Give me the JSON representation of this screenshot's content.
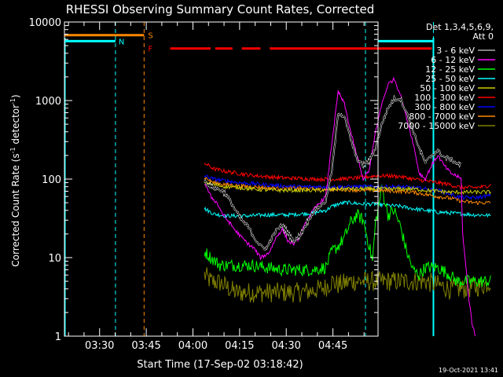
{
  "chart_data": {
    "type": "line",
    "title": "RHESSI Observing Summary Count Rates, Corrected",
    "xlabel": "Start Time (17-Sep-02 03:18:42)",
    "ylabel_main": "Corrected Count Rate (s",
    "ylabel_sup1": "-1",
    "ylabel_mid": " detector",
    "ylabel_sup2": "-1",
    "ylabel_end": ")",
    "yscale": "log",
    "ylim": [
      1,
      10000
    ],
    "xlim": [
      "03:18:42",
      "04:59:30"
    ],
    "x_ticks": [
      "03:30",
      "03:45",
      "04:00",
      "04:15",
      "04:30",
      "04:45"
    ],
    "y_ticks": [
      "1",
      "10",
      "100",
      "1000",
      "10000"
    ],
    "legend_header": [
      "Det 1,3,4,5,6,9,",
      "Att 0"
    ],
    "legend_position": "right",
    "flags": {
      "S": "S",
      "N": "N",
      "F": "F"
    },
    "footer_date": "19-Oct-2021 13:41",
    "series": [
      {
        "name": "3 - 6 keV",
        "color": "#000000",
        "points": [
          [
            45,
            95
          ],
          [
            47,
            80
          ],
          [
            49,
            75
          ],
          [
            51,
            70
          ],
          [
            53,
            55
          ],
          [
            55,
            40
          ],
          [
            57,
            30
          ],
          [
            59,
            25
          ],
          [
            61,
            18
          ],
          [
            63,
            14
          ],
          [
            65,
            13
          ],
          [
            66,
            16
          ],
          [
            68,
            22
          ],
          [
            70,
            26
          ],
          [
            72,
            20
          ],
          [
            74,
            16
          ],
          [
            76,
            20
          ],
          [
            78,
            28
          ],
          [
            80,
            38
          ],
          [
            82,
            45
          ],
          [
            84,
            52
          ],
          [
            86,
            130
          ],
          [
            88,
            700
          ],
          [
            90,
            620
          ],
          [
            92,
            320
          ],
          [
            94,
            180
          ],
          [
            96,
            150
          ],
          [
            98,
            170
          ],
          [
            100,
            250
          ],
          [
            102,
            500
          ],
          [
            104,
            800
          ],
          [
            106,
            1050
          ],
          [
            108,
            1050
          ],
          [
            110,
            700
          ],
          [
            112,
            420
          ],
          [
            114,
            250
          ],
          [
            116,
            160
          ],
          [
            118,
            200
          ],
          [
            120,
            230
          ],
          [
            122,
            190
          ],
          [
            124,
            180
          ],
          [
            126,
            160
          ],
          [
            127.5,
            150
          ]
        ]
      },
      {
        "name": "6 - 12 keV",
        "color": "#ff00ff",
        "points": [
          [
            45,
            90
          ],
          [
            47,
            60
          ],
          [
            49,
            50
          ],
          [
            51,
            35
          ],
          [
            53,
            28
          ],
          [
            55,
            22
          ],
          [
            57,
            18
          ],
          [
            59,
            15
          ],
          [
            61,
            13
          ],
          [
            63,
            10
          ],
          [
            65,
            11
          ],
          [
            66,
            12
          ],
          [
            68,
            18
          ],
          [
            70,
            23
          ],
          [
            72,
            16
          ],
          [
            74,
            15
          ],
          [
            76,
            20
          ],
          [
            78,
            30
          ],
          [
            80,
            40
          ],
          [
            82,
            50
          ],
          [
            84,
            60
          ],
          [
            86,
            300
          ],
          [
            88,
            1300
          ],
          [
            90,
            900
          ],
          [
            92,
            400
          ],
          [
            94,
            200
          ],
          [
            96,
            100
          ],
          [
            98,
            130
          ],
          [
            100,
            400
          ],
          [
            102,
            900
          ],
          [
            104,
            1600
          ],
          [
            106,
            1900
          ],
          [
            108,
            1200
          ],
          [
            110,
            600
          ],
          [
            112,
            300
          ],
          [
            114,
            120
          ],
          [
            116,
            100
          ],
          [
            118,
            150
          ],
          [
            120,
            200
          ],
          [
            122,
            150
          ],
          [
            124,
            120
          ],
          [
            126,
            110
          ],
          [
            127.5,
            100
          ],
          [
            128,
            20
          ],
          [
            129,
            8
          ],
          [
            130,
            3
          ],
          [
            131,
            1.5
          ],
          [
            132,
            1
          ]
        ]
      },
      {
        "name": "12 - 25 keV",
        "color": "#00ff00",
        "points": [
          [
            45,
            12
          ],
          [
            47,
            10
          ],
          [
            50,
            8
          ],
          [
            55,
            8
          ],
          [
            60,
            8
          ],
          [
            65,
            7.5
          ],
          [
            70,
            7
          ],
          [
            75,
            7
          ],
          [
            80,
            7
          ],
          [
            84,
            7.5
          ],
          [
            86,
            12
          ],
          [
            88,
            14
          ],
          [
            90,
            18
          ],
          [
            92,
            28
          ],
          [
            94,
            35
          ],
          [
            96,
            30
          ],
          [
            98,
            14
          ],
          [
            99,
            9
          ],
          [
            100,
            28
          ],
          [
            101,
            45
          ],
          [
            102,
            80
          ],
          [
            104,
            35
          ],
          [
            106,
            40
          ],
          [
            108,
            25
          ],
          [
            110,
            12
          ],
          [
            112,
            7
          ],
          [
            114,
            6
          ],
          [
            116,
            7.5
          ],
          [
            120,
            7.5
          ],
          [
            124,
            6
          ],
          [
            126,
            5
          ],
          [
            128,
            5
          ],
          [
            132,
            5
          ],
          [
            135,
            5
          ],
          [
            137,
            5
          ]
        ]
      },
      {
        "name": "25 - 50 keV",
        "color": "#00ffff",
        "points": [
          [
            45,
            42
          ],
          [
            48,
            36
          ],
          [
            52,
            34
          ],
          [
            56,
            34
          ],
          [
            60,
            34
          ],
          [
            64,
            35
          ],
          [
            68,
            35
          ],
          [
            72,
            35
          ],
          [
            76,
            36
          ],
          [
            80,
            37
          ],
          [
            84,
            40
          ],
          [
            86,
            45
          ],
          [
            88,
            48
          ],
          [
            90,
            50
          ],
          [
            92,
            50
          ],
          [
            96,
            48
          ],
          [
            100,
            48
          ],
          [
            104,
            46
          ],
          [
            108,
            45
          ],
          [
            112,
            42
          ],
          [
            116,
            40
          ],
          [
            120,
            38
          ],
          [
            124,
            37
          ],
          [
            128,
            36
          ],
          [
            132,
            35
          ],
          [
            135,
            35
          ],
          [
            137,
            34
          ]
        ]
      },
      {
        "name": "50 - 100 keV",
        "color": "#cccc00",
        "points": [
          [
            45,
            92
          ],
          [
            48,
            85
          ],
          [
            52,
            80
          ],
          [
            56,
            78
          ],
          [
            60,
            75
          ],
          [
            64,
            73
          ],
          [
            68,
            72
          ],
          [
            72,
            72
          ],
          [
            76,
            72
          ],
          [
            80,
            72
          ],
          [
            84,
            72
          ],
          [
            88,
            75
          ],
          [
            92,
            75
          ],
          [
            96,
            75
          ],
          [
            100,
            75
          ],
          [
            104,
            75
          ],
          [
            108,
            75
          ],
          [
            112,
            75
          ],
          [
            116,
            72
          ],
          [
            120,
            70
          ],
          [
            124,
            68
          ],
          [
            128,
            68
          ],
          [
            132,
            68
          ],
          [
            135,
            68
          ],
          [
            137,
            68
          ]
        ]
      },
      {
        "name": "100 - 300 keV",
        "color": "#ff0000",
        "points": [
          [
            45,
            160
          ],
          [
            48,
            135
          ],
          [
            52,
            125
          ],
          [
            56,
            118
          ],
          [
            60,
            112
          ],
          [
            64,
            108
          ],
          [
            68,
            105
          ],
          [
            72,
            103
          ],
          [
            76,
            102
          ],
          [
            80,
            100
          ],
          [
            84,
            100
          ],
          [
            88,
            100
          ],
          [
            92,
            102
          ],
          [
            96,
            105
          ],
          [
            100,
            110
          ],
          [
            104,
            110
          ],
          [
            108,
            108
          ],
          [
            112,
            100
          ],
          [
            116,
            95
          ],
          [
            120,
            90
          ],
          [
            124,
            85
          ],
          [
            126,
            80
          ],
          [
            128,
            78
          ],
          [
            132,
            78
          ],
          [
            135,
            80
          ],
          [
            137,
            85
          ]
        ]
      },
      {
        "name": "300 - 800 keV",
        "color": "#0000ff",
        "points": [
          [
            45,
            110
          ],
          [
            48,
            100
          ],
          [
            52,
            95
          ],
          [
            56,
            90
          ],
          [
            60,
            88
          ],
          [
            64,
            85
          ],
          [
            68,
            83
          ],
          [
            72,
            81
          ],
          [
            76,
            80
          ],
          [
            80,
            80
          ],
          [
            84,
            80
          ],
          [
            88,
            80
          ],
          [
            92,
            80
          ],
          [
            96,
            80
          ],
          [
            100,
            80
          ],
          [
            104,
            80
          ],
          [
            108,
            80
          ],
          [
            112,
            78
          ],
          [
            116,
            75
          ],
          [
            120,
            72
          ],
          [
            124,
            65
          ],
          [
            126,
            60
          ],
          [
            128,
            58
          ],
          [
            132,
            58
          ],
          [
            135,
            60
          ],
          [
            137,
            62
          ]
        ]
      },
      {
        "name": "800 - 7000 keV",
        "color": "#ff8800",
        "points": [
          [
            45,
            105
          ],
          [
            48,
            90
          ],
          [
            52,
            85
          ],
          [
            56,
            82
          ],
          [
            60,
            80
          ],
          [
            64,
            78
          ],
          [
            68,
            77
          ],
          [
            72,
            76
          ],
          [
            76,
            76
          ],
          [
            80,
            75
          ],
          [
            84,
            75
          ],
          [
            88,
            74
          ],
          [
            92,
            73
          ],
          [
            96,
            72
          ],
          [
            100,
            72
          ],
          [
            104,
            71
          ],
          [
            108,
            70
          ],
          [
            112,
            68
          ],
          [
            116,
            64
          ],
          [
            120,
            60
          ],
          [
            124,
            57
          ],
          [
            126,
            55
          ],
          [
            128,
            52
          ],
          [
            132,
            50
          ],
          [
            135,
            50
          ],
          [
            137,
            50
          ]
        ]
      },
      {
        "name": "7000 - 15000 keV",
        "color": "#808000",
        "points": [
          [
            45,
            6
          ],
          [
            47,
            5
          ],
          [
            50,
            4.8
          ],
          [
            55,
            3.6
          ],
          [
            60,
            3.6
          ],
          [
            65,
            3.6
          ],
          [
            70,
            3.6
          ],
          [
            75,
            3.6
          ],
          [
            80,
            3.8
          ],
          [
            84,
            4.2
          ],
          [
            86,
            5
          ],
          [
            88,
            4.5
          ],
          [
            92,
            5
          ],
          [
            96,
            5
          ],
          [
            100,
            5
          ],
          [
            104,
            5
          ],
          [
            108,
            5
          ],
          [
            112,
            5
          ],
          [
            116,
            5
          ],
          [
            120,
            4.5
          ],
          [
            124,
            4
          ],
          [
            128,
            4
          ],
          [
            132,
            4.2
          ],
          [
            135,
            4.5
          ],
          [
            137,
            5
          ]
        ]
      }
    ]
  }
}
